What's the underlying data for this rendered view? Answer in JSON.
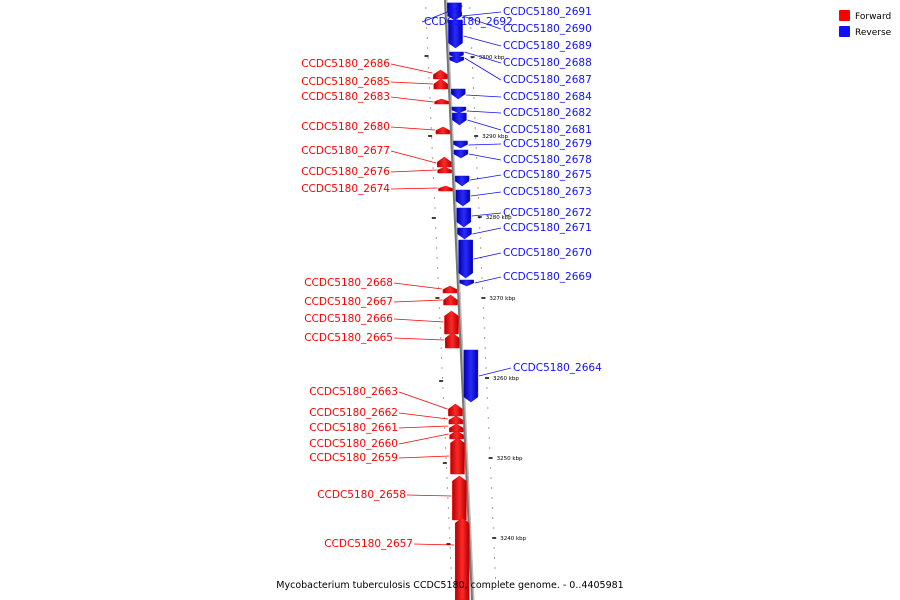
{
  "caption": "Mycobacterium tuberculosis CCDC5180, complete genome. - 0..4405981",
  "colors": {
    "forward": "#ff0000",
    "reverse": "#1010ff",
    "backbone": "#888888"
  },
  "legend": [
    {
      "key": "forward",
      "label": "Forward",
      "color": "#ff0000"
    },
    {
      "key": "reverse",
      "label": "Reverse",
      "color": "#1010ff"
    }
  ],
  "ticks": [
    {
      "label": "3300 kbp"
    },
    {
      "label": "3290 kbp"
    },
    {
      "label": "3280 kbp"
    },
    {
      "label": "3270 kbp"
    },
    {
      "label": "3260 kbp"
    },
    {
      "label": "3250 kbp"
    },
    {
      "label": "3240 kbp"
    }
  ],
  "genes": [
    {
      "label": "CCDC5180_2692",
      "strand": "reverse"
    },
    {
      "label": "CCDC5180_2691",
      "strand": "reverse"
    },
    {
      "label": "CCDC5180_2690",
      "strand": "reverse"
    },
    {
      "label": "CCDC5180_2689",
      "strand": "reverse"
    },
    {
      "label": "CCDC5180_2688",
      "strand": "reverse"
    },
    {
      "label": "CCDC5180_2687",
      "strand": "reverse"
    },
    {
      "label": "CCDC5180_2686",
      "strand": "forward"
    },
    {
      "label": "CCDC5180_2685",
      "strand": "forward"
    },
    {
      "label": "CCDC5180_2684",
      "strand": "reverse"
    },
    {
      "label": "CCDC5180_2683",
      "strand": "forward"
    },
    {
      "label": "CCDC5180_2682",
      "strand": "reverse"
    },
    {
      "label": "CCDC5180_2681",
      "strand": "reverse"
    },
    {
      "label": "CCDC5180_2680",
      "strand": "forward"
    },
    {
      "label": "CCDC5180_2679",
      "strand": "reverse"
    },
    {
      "label": "CCDC5180_2678",
      "strand": "reverse"
    },
    {
      "label": "CCDC5180_2677",
      "strand": "forward"
    },
    {
      "label": "CCDC5180_2676",
      "strand": "forward"
    },
    {
      "label": "CCDC5180_2675",
      "strand": "reverse"
    },
    {
      "label": "CCDC5180_2674",
      "strand": "forward"
    },
    {
      "label": "CCDC5180_2673",
      "strand": "reverse"
    },
    {
      "label": "CCDC5180_2672",
      "strand": "reverse"
    },
    {
      "label": "CCDC5180_2671",
      "strand": "reverse"
    },
    {
      "label": "CCDC5180_2670",
      "strand": "reverse"
    },
    {
      "label": "CCDC5180_2669",
      "strand": "reverse"
    },
    {
      "label": "CCDC5180_2668",
      "strand": "forward"
    },
    {
      "label": "CCDC5180_2667",
      "strand": "forward"
    },
    {
      "label": "CCDC5180_2666",
      "strand": "forward"
    },
    {
      "label": "CCDC5180_2665",
      "strand": "forward"
    },
    {
      "label": "CCDC5180_2664",
      "strand": "reverse"
    },
    {
      "label": "CCDC5180_2663",
      "strand": "forward"
    },
    {
      "label": "CCDC5180_2662",
      "strand": "forward"
    },
    {
      "label": "CCDC5180_2661",
      "strand": "forward"
    },
    {
      "label": "CCDC5180_2660",
      "strand": "forward"
    },
    {
      "label": "CCDC5180_2659",
      "strand": "forward"
    },
    {
      "label": "CCDC5180_2658",
      "strand": "forward"
    },
    {
      "label": "CCDC5180_2657",
      "strand": "forward"
    }
  ]
}
